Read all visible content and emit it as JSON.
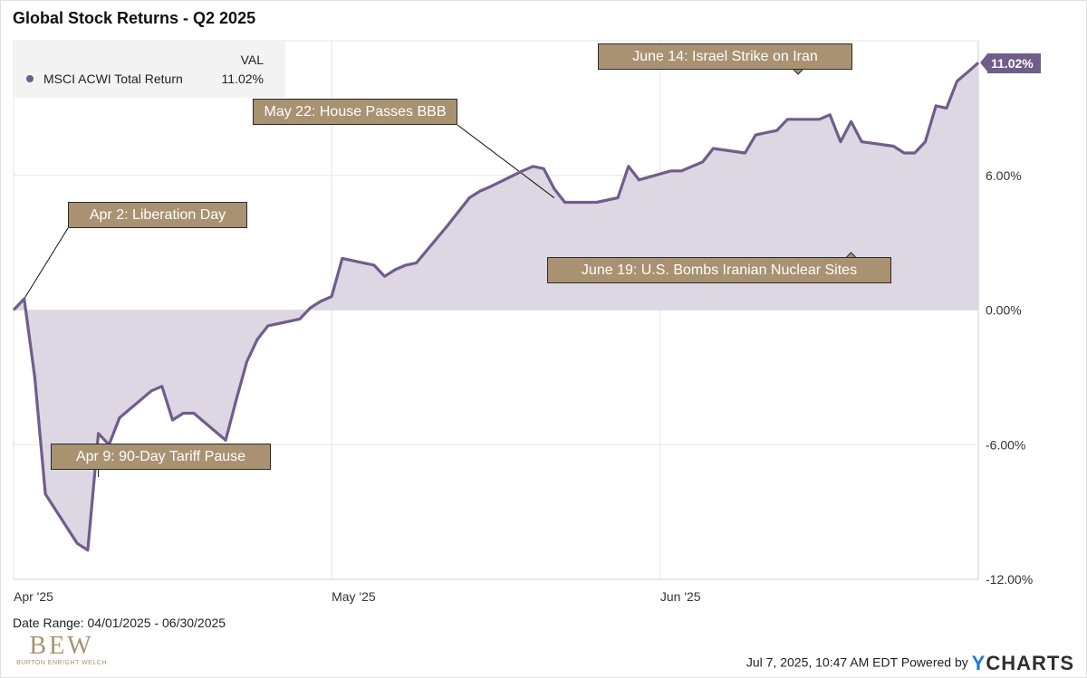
{
  "chart_data": {
    "type": "area",
    "title": "Global Stock Returns - Q2 2025",
    "legend": {
      "header": "VAL",
      "series_name": "MSCI ACWI Total Return",
      "series_value": "11.02%"
    },
    "series": [
      {
        "name": "MSCI ACWI Total Return",
        "color": "#6f5d8c",
        "fill": "#dcd7e3",
        "points": [
          [
            "2025-04-01",
            0.0
          ],
          [
            "2025-04-02",
            0.5
          ],
          [
            "2025-04-03",
            -3.0
          ],
          [
            "2025-04-04",
            -8.2
          ],
          [
            "2025-04-07",
            -10.4
          ],
          [
            "2025-04-08",
            -10.7
          ],
          [
            "2025-04-09",
            -5.5
          ],
          [
            "2025-04-10",
            -6.0
          ],
          [
            "2025-04-11",
            -4.8
          ],
          [
            "2025-04-14",
            -3.6
          ],
          [
            "2025-04-15",
            -3.4
          ],
          [
            "2025-04-16",
            -4.9
          ],
          [
            "2025-04-17",
            -4.6
          ],
          [
            "2025-04-18",
            -4.6
          ],
          [
            "2025-04-21",
            -5.8
          ],
          [
            "2025-04-22",
            -4.0
          ],
          [
            "2025-04-23",
            -2.3
          ],
          [
            "2025-04-24",
            -1.3
          ],
          [
            "2025-04-25",
            -0.7
          ],
          [
            "2025-04-28",
            -0.4
          ],
          [
            "2025-04-29",
            0.1
          ],
          [
            "2025-04-30",
            0.4
          ],
          [
            "2025-05-01",
            0.6
          ],
          [
            "2025-05-02",
            2.3
          ],
          [
            "2025-05-05",
            2.0
          ],
          [
            "2025-05-06",
            1.5
          ],
          [
            "2025-05-07",
            1.8
          ],
          [
            "2025-05-08",
            2.0
          ],
          [
            "2025-05-09",
            2.1
          ],
          [
            "2025-05-12",
            3.8
          ],
          [
            "2025-05-13",
            4.4
          ],
          [
            "2025-05-14",
            5.0
          ],
          [
            "2025-05-15",
            5.3
          ],
          [
            "2025-05-16",
            5.5
          ],
          [
            "2025-05-19",
            6.2
          ],
          [
            "2025-05-20",
            6.4
          ],
          [
            "2025-05-21",
            6.3
          ],
          [
            "2025-05-22",
            5.4
          ],
          [
            "2025-05-23",
            4.8
          ],
          [
            "2025-05-26",
            4.8
          ],
          [
            "2025-05-27",
            4.9
          ],
          [
            "2025-05-28",
            5.0
          ],
          [
            "2025-05-29",
            6.4
          ],
          [
            "2025-05-30",
            5.8
          ],
          [
            "2025-06-02",
            6.2
          ],
          [
            "2025-06-03",
            6.2
          ],
          [
            "2025-06-04",
            6.4
          ],
          [
            "2025-06-05",
            6.6
          ],
          [
            "2025-06-06",
            7.2
          ],
          [
            "2025-06-09",
            7.0
          ],
          [
            "2025-06-10",
            7.8
          ],
          [
            "2025-06-11",
            7.9
          ],
          [
            "2025-06-12",
            8.0
          ],
          [
            "2025-06-13",
            8.5
          ],
          [
            "2025-06-16",
            8.5
          ],
          [
            "2025-06-17",
            8.7
          ],
          [
            "2025-06-18",
            7.5
          ],
          [
            "2025-06-19",
            8.4
          ],
          [
            "2025-06-20",
            7.5
          ],
          [
            "2025-06-23",
            7.3
          ],
          [
            "2025-06-24",
            7.0
          ],
          [
            "2025-06-25",
            7.0
          ],
          [
            "2025-06-26",
            7.5
          ],
          [
            "2025-06-27",
            9.1
          ],
          [
            "2025-06-28",
            9.0
          ],
          [
            "2025-06-29",
            10.2
          ],
          [
            "2025-06-30",
            10.6
          ],
          [
            "2025-07-01",
            11.02
          ]
        ]
      }
    ],
    "x_ticks": [
      {
        "date": "2025-04-01",
        "label": "Apr '25"
      },
      {
        "date": "2025-05-01",
        "label": "May '25"
      },
      {
        "date": "2025-06-01",
        "label": "Jun '25"
      }
    ],
    "y_ticks": [
      {
        "value": 6,
        "label": "6.00%"
      },
      {
        "value": 0,
        "label": "0.00%"
      },
      {
        "value": -6,
        "label": "-6.00%"
      },
      {
        "value": -12,
        "label": "-12.00%"
      }
    ],
    "ylim": [
      -12.0,
      12.0
    ],
    "xlim": [
      "2025-04-01",
      "2025-07-01"
    ],
    "last_value_label": "11.02%",
    "grid": true,
    "legend_position": "top-left",
    "annotations": [
      {
        "text": "Apr 2: Liberation Day",
        "date": "2025-04-02",
        "value": 0.5
      },
      {
        "text": "Apr 9: 90-Day Tariff Pause",
        "date": "2025-04-09",
        "value": -7.3
      },
      {
        "text": "May 22: House Passes BBB",
        "date": "2025-05-22",
        "value": 5.0
      },
      {
        "text": "June 14: Israel Strike on Iran",
        "date": "2025-06-14",
        "value": 10.5
      },
      {
        "text": "June 19: U.S. Bombs Iranian Nuclear Sites",
        "date": "2025-06-19",
        "value": 2.6
      }
    ]
  },
  "footer": {
    "date_range": "Date Range: 04/01/2025 - 06/30/2025",
    "timestamp": "Jul 7, 2025, 10:47 AM EDT Powered by",
    "brand_y": "Y",
    "brand_rest": "CHARTS",
    "logo_big": "BEW",
    "logo_small": "BURTON ENRIGHT WELCH"
  }
}
